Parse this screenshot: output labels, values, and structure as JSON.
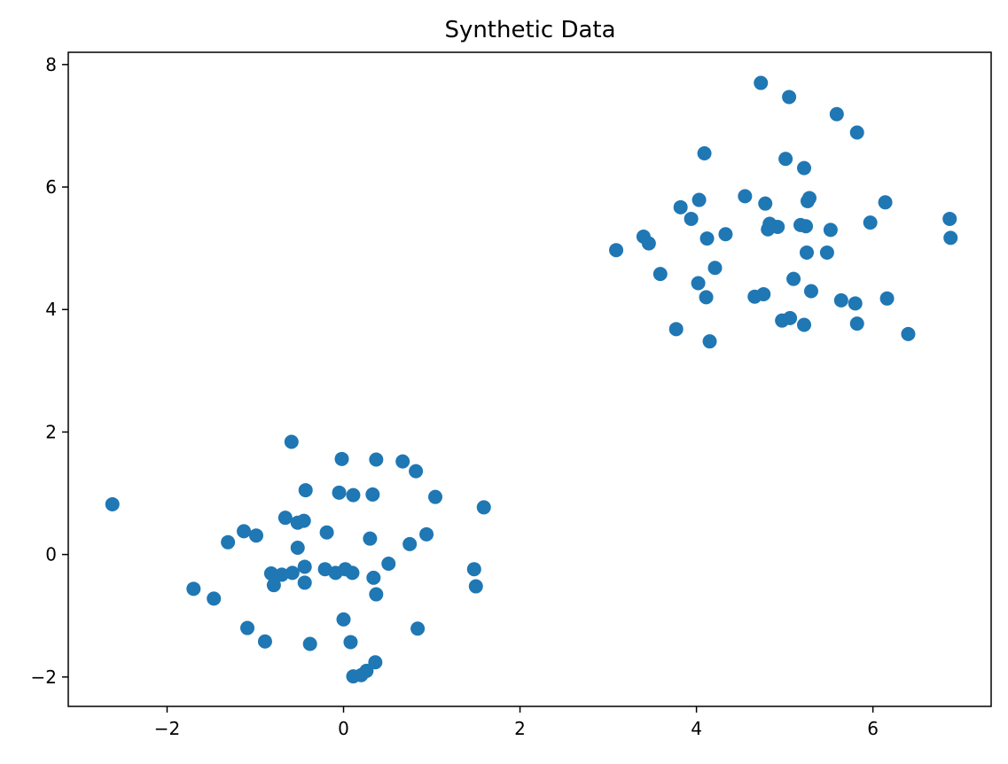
{
  "chart_data": {
    "type": "scatter",
    "title": "Synthetic Data",
    "xlabel": "",
    "ylabel": "",
    "xlim": [
      -3.12,
      7.34
    ],
    "ylim": [
      -2.48,
      8.2
    ],
    "x_ticks": [
      -2,
      0,
      2,
      4,
      6
    ],
    "y_ticks": [
      -2,
      0,
      2,
      4,
      6,
      8
    ],
    "grid": false,
    "legend": "none",
    "marker_color": "#1f77b4",
    "points": [
      {
        "x": -2.62,
        "y": 0.82
      },
      {
        "x": -1.7,
        "y": -0.56
      },
      {
        "x": -1.47,
        "y": -0.72
      },
      {
        "x": -1.31,
        "y": 0.2
      },
      {
        "x": -1.13,
        "y": 0.38
      },
      {
        "x": -1.09,
        "y": -1.2
      },
      {
        "x": -0.99,
        "y": 0.31
      },
      {
        "x": -0.89,
        "y": -1.42
      },
      {
        "x": -0.82,
        "y": -0.31
      },
      {
        "x": -0.79,
        "y": -0.5
      },
      {
        "x": -0.7,
        "y": -0.33
      },
      {
        "x": -0.66,
        "y": 0.6
      },
      {
        "x": -0.59,
        "y": 1.84
      },
      {
        "x": -0.58,
        "y": -0.3
      },
      {
        "x": -0.52,
        "y": 0.52
      },
      {
        "x": -0.52,
        "y": 0.11
      },
      {
        "x": -0.45,
        "y": 0.55
      },
      {
        "x": -0.44,
        "y": -0.2
      },
      {
        "x": -0.44,
        "y": -0.46
      },
      {
        "x": -0.43,
        "y": 1.05
      },
      {
        "x": -0.38,
        "y": -1.46
      },
      {
        "x": -0.21,
        "y": -0.24
      },
      {
        "x": -0.19,
        "y": 0.36
      },
      {
        "x": -0.09,
        "y": -0.3
      },
      {
        "x": -0.05,
        "y": 1.01
      },
      {
        "x": -0.02,
        "y": 1.56
      },
      {
        "x": 0.0,
        "y": -1.06
      },
      {
        "x": 0.02,
        "y": -0.24
      },
      {
        "x": 0.08,
        "y": -1.43
      },
      {
        "x": 0.1,
        "y": -0.3
      },
      {
        "x": 0.11,
        "y": 0.97
      },
      {
        "x": 0.11,
        "y": -1.99
      },
      {
        "x": 0.2,
        "y": -1.97
      },
      {
        "x": 0.26,
        "y": -1.9
      },
      {
        "x": 0.3,
        "y": 0.26
      },
      {
        "x": 0.33,
        "y": 0.98
      },
      {
        "x": 0.34,
        "y": -0.38
      },
      {
        "x": 0.36,
        "y": -1.76
      },
      {
        "x": 0.37,
        "y": -0.65
      },
      {
        "x": 0.37,
        "y": 1.55
      },
      {
        "x": 0.51,
        "y": -0.15
      },
      {
        "x": 0.67,
        "y": 1.52
      },
      {
        "x": 0.75,
        "y": 0.17
      },
      {
        "x": 0.82,
        "y": 1.36
      },
      {
        "x": 0.84,
        "y": -1.21
      },
      {
        "x": 0.94,
        "y": 0.33
      },
      {
        "x": 1.04,
        "y": 0.94
      },
      {
        "x": 1.48,
        "y": -0.24
      },
      {
        "x": 1.5,
        "y": -0.52
      },
      {
        "x": 1.59,
        "y": 0.77
      },
      {
        "x": 3.09,
        "y": 4.97
      },
      {
        "x": 3.4,
        "y": 5.19
      },
      {
        "x": 3.46,
        "y": 5.08
      },
      {
        "x": 3.59,
        "y": 4.58
      },
      {
        "x": 3.77,
        "y": 3.68
      },
      {
        "x": 3.82,
        "y": 5.67
      },
      {
        "x": 3.94,
        "y": 5.48
      },
      {
        "x": 4.02,
        "y": 4.43
      },
      {
        "x": 4.03,
        "y": 5.79
      },
      {
        "x": 4.09,
        "y": 6.55
      },
      {
        "x": 4.11,
        "y": 4.2
      },
      {
        "x": 4.12,
        "y": 5.16
      },
      {
        "x": 4.15,
        "y": 3.48
      },
      {
        "x": 4.21,
        "y": 4.68
      },
      {
        "x": 4.33,
        "y": 5.23
      },
      {
        "x": 4.55,
        "y": 5.85
      },
      {
        "x": 4.66,
        "y": 4.21
      },
      {
        "x": 4.73,
        "y": 7.7
      },
      {
        "x": 4.76,
        "y": 4.25
      },
      {
        "x": 4.78,
        "y": 5.73
      },
      {
        "x": 4.81,
        "y": 5.31
      },
      {
        "x": 4.83,
        "y": 5.4
      },
      {
        "x": 4.92,
        "y": 5.35
      },
      {
        "x": 4.97,
        "y": 3.82
      },
      {
        "x": 5.01,
        "y": 6.46
      },
      {
        "x": 5.05,
        "y": 7.47
      },
      {
        "x": 5.06,
        "y": 3.86
      },
      {
        "x": 5.1,
        "y": 4.5
      },
      {
        "x": 5.18,
        "y": 5.38
      },
      {
        "x": 5.22,
        "y": 6.31
      },
      {
        "x": 5.22,
        "y": 3.75
      },
      {
        "x": 5.24,
        "y": 5.36
      },
      {
        "x": 5.25,
        "y": 4.93
      },
      {
        "x": 5.26,
        "y": 5.77
      },
      {
        "x": 5.28,
        "y": 5.82
      },
      {
        "x": 5.3,
        "y": 4.3
      },
      {
        "x": 5.48,
        "y": 4.93
      },
      {
        "x": 5.52,
        "y": 5.3
      },
      {
        "x": 5.59,
        "y": 7.19
      },
      {
        "x": 5.64,
        "y": 4.15
      },
      {
        "x": 5.8,
        "y": 4.1
      },
      {
        "x": 5.82,
        "y": 6.89
      },
      {
        "x": 5.82,
        "y": 3.77
      },
      {
        "x": 5.97,
        "y": 5.42
      },
      {
        "x": 6.14,
        "y": 5.75
      },
      {
        "x": 6.16,
        "y": 4.18
      },
      {
        "x": 6.4,
        "y": 3.6
      },
      {
        "x": 6.87,
        "y": 5.48
      },
      {
        "x": 6.88,
        "y": 5.17
      }
    ]
  }
}
